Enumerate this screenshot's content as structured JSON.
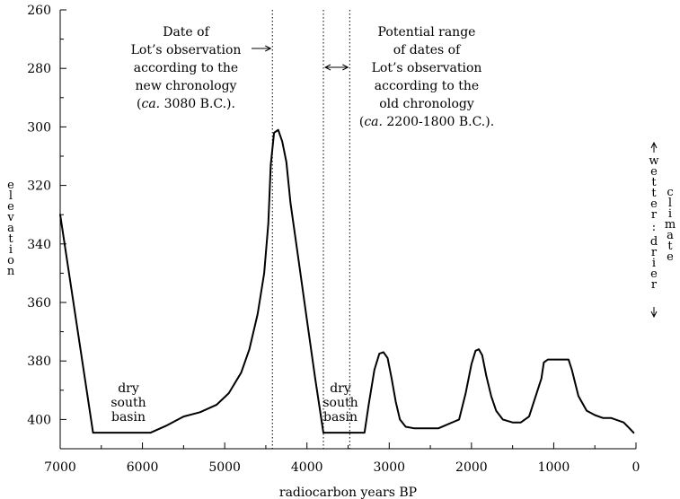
{
  "chart_data": {
    "type": "line",
    "xlabel": "radiocarbon years BP",
    "ylabel_letters": [
      "e",
      "l",
      "e",
      "v",
      "a",
      "t",
      "i",
      "o",
      "n"
    ],
    "xlim": [
      7000,
      0
    ],
    "ylim": [
      260,
      410
    ],
    "x_ticks": [
      7000,
      6000,
      5000,
      4000,
      3000,
      2000,
      1000,
      0
    ],
    "y_ticks": [
      260,
      280,
      300,
      320,
      340,
      360,
      380,
      400
    ],
    "y_inverted": true,
    "grid": false,
    "series": [
      {
        "x": [
          7000,
          6600,
          5900,
          5700,
          5500,
          5300,
          5100,
          4950,
          4800,
          4700,
          4600,
          4520,
          4470,
          4440,
          4400,
          4350,
          4300,
          4250,
          4200,
          4100,
          4000,
          3900,
          3800,
          3700,
          3600,
          3300,
          3250,
          3180,
          3120,
          3070,
          3020,
          2970,
          2920,
          2870,
          2800,
          2700,
          2550,
          2400,
          2150,
          2070,
          2000,
          1950,
          1910,
          1870,
          1820,
          1760,
          1700,
          1620,
          1500,
          1400,
          1300,
          1150,
          1120,
          1070,
          900,
          820,
          780,
          700,
          600,
          500,
          400,
          300,
          250,
          150,
          80,
          30
        ],
        "y": [
          330,
          404.5,
          404.5,
          402,
          399,
          397.5,
          395,
          391,
          384,
          376,
          364,
          350,
          333,
          313,
          302,
          301,
          305,
          312,
          326,
          346,
          366,
          386,
          404.5,
          404.5,
          404.5,
          404.5,
          395,
          383,
          377.5,
          377,
          379,
          386,
          394,
          400,
          402.5,
          403,
          403,
          403,
          400,
          391,
          381,
          376.5,
          376,
          378,
          385,
          392,
          397,
          400,
          401,
          401,
          399,
          386,
          380.5,
          379.5,
          379.5,
          379.5,
          383,
          392,
          397,
          398.5,
          399.5,
          399.5,
          400,
          401,
          403,
          404.5
        ]
      }
    ],
    "vlines": [
      {
        "x": 4420,
        "style": "dotted"
      },
      {
        "x": 3800,
        "style": "dotted"
      },
      {
        "x": 3480,
        "style": "dotted"
      }
    ],
    "annotations": {
      "left_block": {
        "lines": [
          "Date of",
          "Lot’s observation",
          "according to the",
          "new chronology"
        ],
        "last_italic": "ca.",
        "last_rest": " 3080 B.C.)."
      },
      "right_block": {
        "lines": [
          "Potential range",
          "of dates of",
          "Lot’s observation",
          "according to the",
          "old chronology"
        ],
        "last_italic": "ca.",
        "last_rest": " 2200-1800 B.C.)."
      },
      "dry_left": [
        "dry",
        "south",
        "basin"
      ],
      "dry_center": [
        "dry",
        "south",
        "basin"
      ],
      "paren_open": "(",
      "climate_scale": {
        "wetter_letters": [
          "w",
          "e",
          "t",
          "t",
          "e",
          "r"
        ],
        "separator": ":",
        "drier_letters": [
          "d",
          "r",
          "i",
          "e",
          "r"
        ],
        "climate_letters": [
          "c",
          "l",
          "i",
          "m",
          "a",
          "t",
          "e"
        ]
      }
    }
  }
}
